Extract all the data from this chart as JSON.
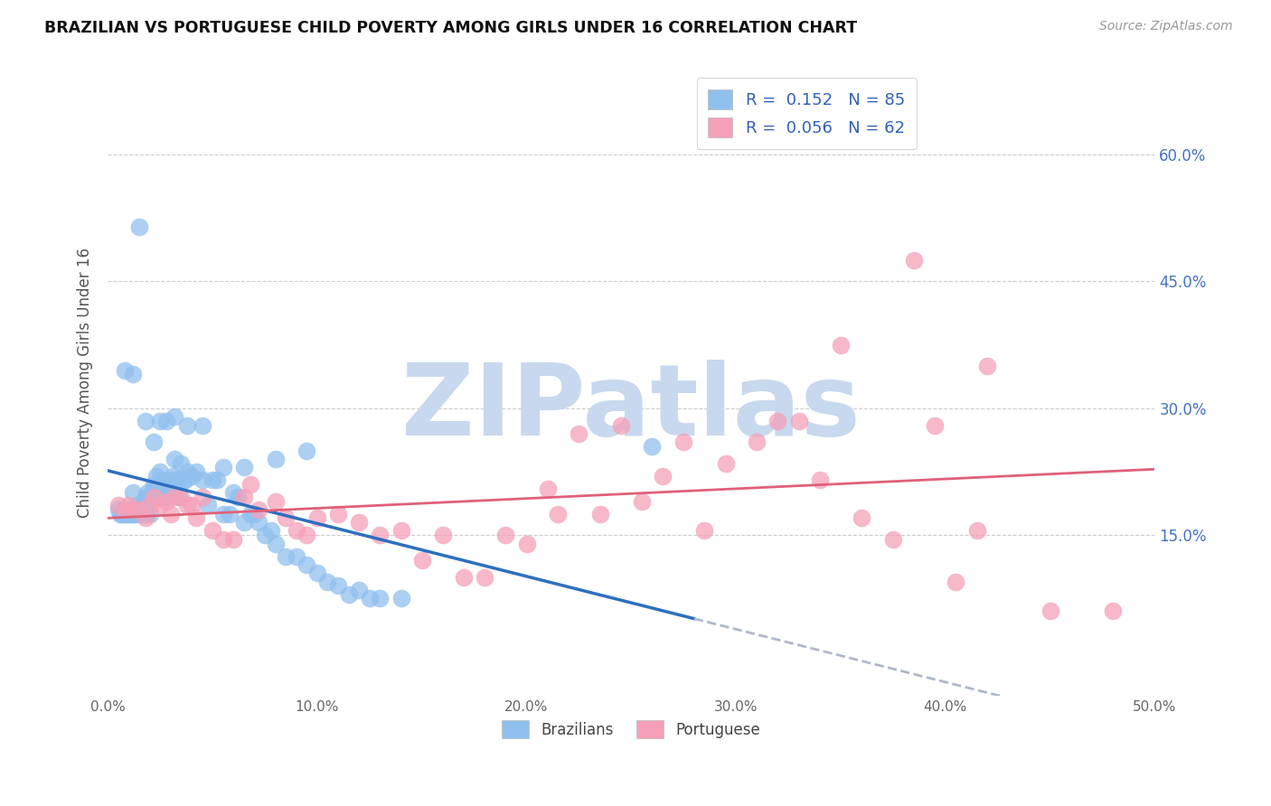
{
  "title": "BRAZILIAN VS PORTUGUESE CHILD POVERTY AMONG GIRLS UNDER 16 CORRELATION CHART",
  "source": "Source: ZipAtlas.com",
  "ylabel": "Child Poverty Among Girls Under 16",
  "ytick_labels": [
    "15.0%",
    "30.0%",
    "45.0%",
    "60.0%"
  ],
  "ytick_values": [
    0.15,
    0.3,
    0.45,
    0.6
  ],
  "xlim": [
    0.0,
    0.5
  ],
  "ylim": [
    -0.04,
    0.7
  ],
  "blue_R": 0.152,
  "pink_R": 0.056,
  "blue_N": 85,
  "pink_N": 62,
  "blue_color": "#90C0EE",
  "pink_color": "#F5A0B8",
  "blue_line_color": "#2E6FBF",
  "pink_line_color": "#E0607A",
  "dash_color": "#B0B8C8",
  "watermark": "ZIPatlas",
  "watermark_color": "#C8D8EE",
  "blue_x": [
    0.005,
    0.006,
    0.007,
    0.008,
    0.008,
    0.009,
    0.01,
    0.01,
    0.011,
    0.012,
    0.012,
    0.013,
    0.014,
    0.015,
    0.015,
    0.016,
    0.017,
    0.018,
    0.018,
    0.019,
    0.02,
    0.02,
    0.021,
    0.022,
    0.022,
    0.023,
    0.024,
    0.025,
    0.025,
    0.026,
    0.027,
    0.028,
    0.029,
    0.03,
    0.031,
    0.032,
    0.033,
    0.034,
    0.035,
    0.036,
    0.037,
    0.038,
    0.04,
    0.042,
    0.045,
    0.048,
    0.05,
    0.052,
    0.055,
    0.058,
    0.06,
    0.062,
    0.065,
    0.068,
    0.07,
    0.072,
    0.075,
    0.078,
    0.08,
    0.085,
    0.09,
    0.095,
    0.1,
    0.105,
    0.11,
    0.115,
    0.12,
    0.125,
    0.13,
    0.14,
    0.008,
    0.012,
    0.015,
    0.018,
    0.022,
    0.025,
    0.028,
    0.032,
    0.038,
    0.045,
    0.055,
    0.065,
    0.08,
    0.095,
    0.26
  ],
  "blue_y": [
    0.18,
    0.175,
    0.175,
    0.175,
    0.18,
    0.175,
    0.175,
    0.18,
    0.175,
    0.2,
    0.175,
    0.175,
    0.185,
    0.175,
    0.18,
    0.175,
    0.19,
    0.175,
    0.195,
    0.2,
    0.175,
    0.195,
    0.195,
    0.205,
    0.21,
    0.22,
    0.195,
    0.2,
    0.225,
    0.215,
    0.21,
    0.195,
    0.205,
    0.215,
    0.22,
    0.24,
    0.215,
    0.195,
    0.235,
    0.215,
    0.215,
    0.225,
    0.22,
    0.225,
    0.215,
    0.185,
    0.215,
    0.215,
    0.175,
    0.175,
    0.2,
    0.195,
    0.165,
    0.175,
    0.175,
    0.165,
    0.15,
    0.155,
    0.14,
    0.125,
    0.125,
    0.115,
    0.105,
    0.095,
    0.09,
    0.08,
    0.085,
    0.075,
    0.075,
    0.075,
    0.345,
    0.34,
    0.515,
    0.285,
    0.26,
    0.285,
    0.285,
    0.29,
    0.28,
    0.28,
    0.23,
    0.23,
    0.24,
    0.25,
    0.255
  ],
  "pink_x": [
    0.005,
    0.008,
    0.01,
    0.012,
    0.015,
    0.018,
    0.02,
    0.022,
    0.025,
    0.028,
    0.03,
    0.032,
    0.035,
    0.038,
    0.04,
    0.042,
    0.045,
    0.05,
    0.055,
    0.06,
    0.065,
    0.068,
    0.072,
    0.08,
    0.085,
    0.09,
    0.095,
    0.1,
    0.11,
    0.12,
    0.13,
    0.14,
    0.15,
    0.16,
    0.17,
    0.18,
    0.19,
    0.2,
    0.21,
    0.215,
    0.225,
    0.235,
    0.245,
    0.255,
    0.265,
    0.275,
    0.285,
    0.295,
    0.31,
    0.32,
    0.33,
    0.34,
    0.35,
    0.36,
    0.375,
    0.385,
    0.395,
    0.405,
    0.415,
    0.42,
    0.45,
    0.48
  ],
  "pink_y": [
    0.185,
    0.18,
    0.185,
    0.18,
    0.18,
    0.17,
    0.185,
    0.195,
    0.185,
    0.19,
    0.175,
    0.195,
    0.195,
    0.185,
    0.185,
    0.17,
    0.195,
    0.155,
    0.145,
    0.145,
    0.195,
    0.21,
    0.18,
    0.19,
    0.17,
    0.155,
    0.15,
    0.17,
    0.175,
    0.165,
    0.15,
    0.155,
    0.12,
    0.15,
    0.1,
    0.1,
    0.15,
    0.14,
    0.205,
    0.175,
    0.27,
    0.175,
    0.28,
    0.19,
    0.22,
    0.26,
    0.155,
    0.235,
    0.26,
    0.285,
    0.285,
    0.215,
    0.375,
    0.17,
    0.145,
    0.475,
    0.28,
    0.095,
    0.155,
    0.35,
    0.06,
    0.06
  ]
}
